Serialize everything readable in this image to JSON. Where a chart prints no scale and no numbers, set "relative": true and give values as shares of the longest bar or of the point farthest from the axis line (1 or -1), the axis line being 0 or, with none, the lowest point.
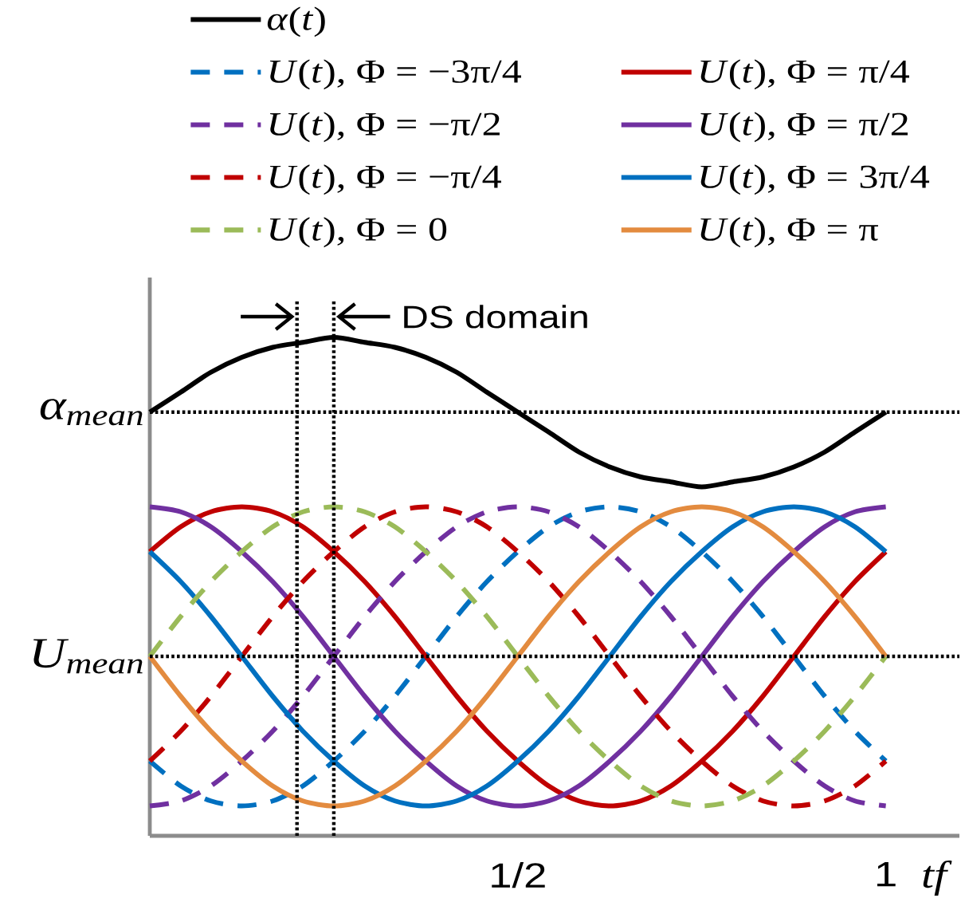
{
  "chart_data": {
    "type": "line",
    "relative": true,
    "legend": "top",
    "x": [
      0,
      0.042,
      0.083,
      0.125,
      0.167,
      0.208,
      0.25,
      0.292,
      0.333,
      0.375,
      0.417,
      0.458,
      0.5,
      0.542,
      0.583,
      0.625,
      0.667,
      0.708,
      0.75,
      0.792,
      0.833,
      0.875,
      0.917,
      0.958,
      1
    ],
    "xlim": [
      0,
      1.1
    ],
    "xticks": [
      {
        "value": 0.5,
        "label": "1/2"
      },
      1
    ],
    "xlabel": "tf",
    "series": [
      {
        "name": "*α*(*t*)",
        "color": "#000000",
        "line_style": "solid",
        "values": [
          0.85,
          0.89,
          0.93,
          0.96,
          0.98,
          0.99,
          1,
          0.99,
          0.98,
          0.96,
          0.93,
          0.89,
          0.85,
          0.81,
          0.77,
          0.74,
          0.72,
          0.71,
          0.7,
          0.71,
          0.72,
          0.74,
          0.77,
          0.81,
          0.85
        ]
      },
      {
        "name": "*U*(*t*), Φ = −3π/4",
        "color": "#0070c0",
        "line_style": "dashed",
        "values": [
          0.15,
          0.1,
          0.07,
          0.06,
          0.07,
          0.1,
          0.15,
          0.21,
          0.28,
          0.36,
          0.44,
          0.51,
          0.57,
          0.62,
          0.65,
          0.66,
          0.65,
          0.62,
          0.57,
          0.51,
          0.44,
          0.36,
          0.28,
          0.21,
          0.15
        ]
      },
      {
        "name": "*U*(*t*), Φ = π/4",
        "color": "#c00000",
        "line_style": "solid",
        "values": [
          0.57,
          0.62,
          0.65,
          0.66,
          0.65,
          0.62,
          0.57,
          0.51,
          0.44,
          0.36,
          0.28,
          0.21,
          0.15,
          0.1,
          0.07,
          0.06,
          0.07,
          0.1,
          0.15,
          0.21,
          0.28,
          0.36,
          0.44,
          0.51,
          0.57
        ]
      },
      {
        "name": "*U*(*t*), Φ = −π/2",
        "color": "#7030a0",
        "line_style": "dashed",
        "values": [
          0.06,
          0.07,
          0.1,
          0.15,
          0.21,
          0.28,
          0.36,
          0.44,
          0.51,
          0.57,
          0.62,
          0.65,
          0.66,
          0.65,
          0.62,
          0.57,
          0.51,
          0.44,
          0.36,
          0.28,
          0.21,
          0.15,
          0.1,
          0.07,
          0.06
        ]
      },
      {
        "name": "*U*(*t*), Φ = π/2",
        "color": "#7030a0",
        "line_style": "solid",
        "values": [
          0.66,
          0.65,
          0.62,
          0.57,
          0.51,
          0.44,
          0.36,
          0.28,
          0.21,
          0.15,
          0.1,
          0.07,
          0.06,
          0.07,
          0.1,
          0.15,
          0.21,
          0.28,
          0.36,
          0.44,
          0.51,
          0.57,
          0.62,
          0.65,
          0.66
        ]
      },
      {
        "name": "*U*(*t*), Φ = −π/4",
        "color": "#c00000",
        "line_style": "dashed",
        "values": [
          0.15,
          0.21,
          0.28,
          0.36,
          0.44,
          0.51,
          0.57,
          0.62,
          0.65,
          0.66,
          0.65,
          0.62,
          0.57,
          0.51,
          0.44,
          0.36,
          0.28,
          0.21,
          0.15,
          0.1,
          0.07,
          0.06,
          0.07,
          0.1,
          0.15
        ]
      },
      {
        "name": "*U*(*t*), Φ = 3π/4",
        "color": "#0070c0",
        "line_style": "solid",
        "values": [
          0.57,
          0.51,
          0.44,
          0.36,
          0.28,
          0.21,
          0.15,
          0.1,
          0.07,
          0.06,
          0.07,
          0.1,
          0.15,
          0.21,
          0.28,
          0.36,
          0.44,
          0.51,
          0.57,
          0.62,
          0.65,
          0.66,
          0.65,
          0.62,
          0.57
        ]
      },
      {
        "name": "*U*(*t*), Φ = 0",
        "color": "#9bbb59",
        "line_style": "dashed",
        "values": [
          0.36,
          0.44,
          0.51,
          0.57,
          0.62,
          0.65,
          0.66,
          0.65,
          0.62,
          0.57,
          0.51,
          0.44,
          0.36,
          0.28,
          0.21,
          0.15,
          0.1,
          0.07,
          0.06,
          0.07,
          0.1,
          0.15,
          0.21,
          0.28,
          0.36
        ]
      },
      {
        "name": "*U*(*t*), Φ = π",
        "color": "#e38b3f",
        "line_style": "solid",
        "values": [
          0.36,
          0.28,
          0.21,
          0.15,
          0.1,
          0.07,
          0.06,
          0.07,
          0.1,
          0.15,
          0.21,
          0.28,
          0.36,
          0.44,
          0.51,
          0.57,
          0.62,
          0.65,
          0.66,
          0.65,
          0.62,
          0.57,
          0.51,
          0.44,
          0.36
        ]
      }
    ],
    "ref_lines": [
      {
        "axis": "y",
        "value": 0.85,
        "label": "α$_{mean}$",
        "line_style": "dotted",
        "color": "#000000"
      },
      {
        "axis": "y",
        "value": 0.36,
        "label": "U$_{mean}$",
        "line_style": "dotted",
        "color": "#000000"
      },
      {
        "axis": "x",
        "value": 0.2,
        "line_style": "dotted",
        "color": "#000000"
      },
      {
        "axis": "x",
        "value": 0.25,
        "line_style": "dotted",
        "color": "#000000"
      }
    ],
    "annotations": [
      "DS domain"
    ]
  }
}
